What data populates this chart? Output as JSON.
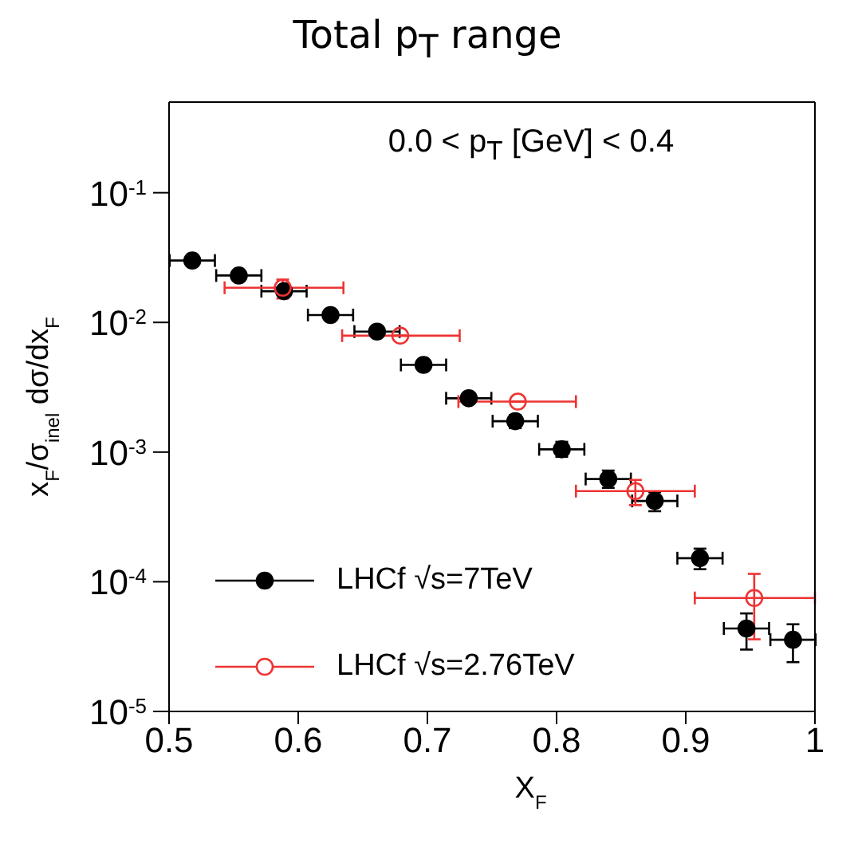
{
  "chart_data": {
    "type": "scatter",
    "title": "Total p$_{T}$ range",
    "xlabel": "X$_{F}$",
    "ylabel": "x$_{F}$/σ$_{inel}$ dσ/dx$_{F}$",
    "annotations": [
      "0.0 < p$_{T}$ [GeV] < 0.4"
    ],
    "log": "y",
    "xlim": [
      0.5,
      1.0
    ],
    "xticks": [
      0.5,
      0.6,
      0.7,
      0.8,
      0.9,
      {
        "value": 1.0,
        "label": "1"
      }
    ],
    "ylim": [
      1e-05,
      0.5
    ],
    "yticks": [
      {
        "value": 1e-05,
        "label": "10$^{-5}$"
      },
      {
        "value": 0.0001,
        "label": "10$^{-4}$"
      },
      {
        "value": 0.001,
        "label": "10$^{-3}$"
      },
      {
        "value": 0.01,
        "label": "10$^{-2}$"
      },
      {
        "value": 0.1,
        "label": "10$^{-1}$"
      }
    ],
    "legend": "bottom left",
    "marker": "circle",
    "grid": false,
    "series": [
      {
        "name": "LHCf √s=7TeV",
        "color": "#000000",
        "x": [
          0.518,
          0.554,
          0.589,
          0.625,
          0.661,
          0.697,
          0.732,
          0.768,
          0.804,
          0.84,
          0.876,
          0.911,
          0.947,
          0.983
        ],
        "values": [
          0.03,
          0.023,
          0.0174,
          0.0114,
          0.0085,
          0.0047,
          0.0026,
          0.00173,
          0.00105,
          0.00062,
          0.00042,
          0.000152,
          4.36e-05,
          3.57e-05
        ],
        "errors": [
          null,
          null,
          null,
          null,
          null,
          null,
          0.0002,
          0.0002,
          [
            0.00092,
            0.0012
          ],
          [
            0.00053,
            0.00072
          ],
          [
            0.00035,
            0.00049
          ],
          [
            0.000125,
            0.00018
          ],
          [
            3e-05,
            5.7e-05
          ],
          [
            2.4e-05,
            4.7e-05
          ]
        ],
        "xerrors": [
          0.0175,
          0.0175,
          0.0175,
          0.0175,
          0.0175,
          0.0175,
          0.0175,
          0.0175,
          0.0175,
          0.0175,
          0.0175,
          0.0175,
          0.0175,
          0.0175
        ]
      },
      {
        "name": "LHCf √s=2.76TeV",
        "color": "#ee3333",
        "x": [
          0.588,
          0.679,
          0.77,
          0.861,
          0.953
        ],
        "values": [
          0.0185,
          0.0079,
          0.00245,
          0.0005,
          7.5e-05
        ],
        "errors": [
          [
            0.0153,
            0.0214
          ],
          null,
          null,
          [
            0.00039,
            0.00061
          ],
          [
            3.6e-05,
            0.000115
          ]
        ],
        "xerrors": [
          [
            0.543,
            0.635
          ],
          [
            0.634,
            0.725
          ],
          [
            0.724,
            0.815
          ],
          [
            0.815,
            0.907
          ],
          [
            0.907,
            1.0
          ]
        ]
      }
    ]
  }
}
